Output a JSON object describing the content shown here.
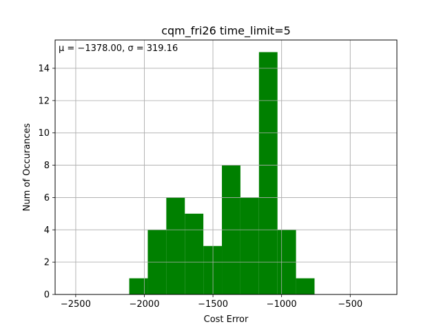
{
  "chart_data": {
    "type": "bar",
    "title": "cqm_fri26 time_limit=5",
    "xlabel": "Cost Error",
    "ylabel": "Num of Occurances",
    "annotation": "μ = −1378.00,  σ = 319.16",
    "xlim": [
      -2650,
      -160
    ],
    "ylim": [
      0,
      15.75
    ],
    "x_ticks": [
      -2500,
      -2000,
      -1500,
      -1000,
      -500
    ],
    "x_tick_labels": [
      "−2500",
      "−2000",
      "−1500",
      "−1000",
      "−500"
    ],
    "y_ticks": [
      0,
      2,
      4,
      6,
      8,
      10,
      12,
      14
    ],
    "y_tick_labels": [
      "0",
      "2",
      "4",
      "6",
      "8",
      "10",
      "12",
      "14"
    ],
    "grid": true,
    "bar_color": "#008000",
    "bins": [
      {
        "x0": -2110,
        "x1": -1975,
        "count": 1
      },
      {
        "x0": -1975,
        "x1": -1840,
        "count": 4
      },
      {
        "x0": -1840,
        "x1": -1705,
        "count": 6
      },
      {
        "x0": -1705,
        "x1": -1570,
        "count": 5
      },
      {
        "x0": -1570,
        "x1": -1435,
        "count": 3
      },
      {
        "x0": -1435,
        "x1": -1300,
        "count": 8
      },
      {
        "x0": -1300,
        "x1": -1165,
        "count": 6
      },
      {
        "x0": -1165,
        "x1": -1030,
        "count": 15
      },
      {
        "x0": -1030,
        "x1": -895,
        "count": 4
      },
      {
        "x0": -895,
        "x1": -760,
        "count": 1
      }
    ]
  }
}
